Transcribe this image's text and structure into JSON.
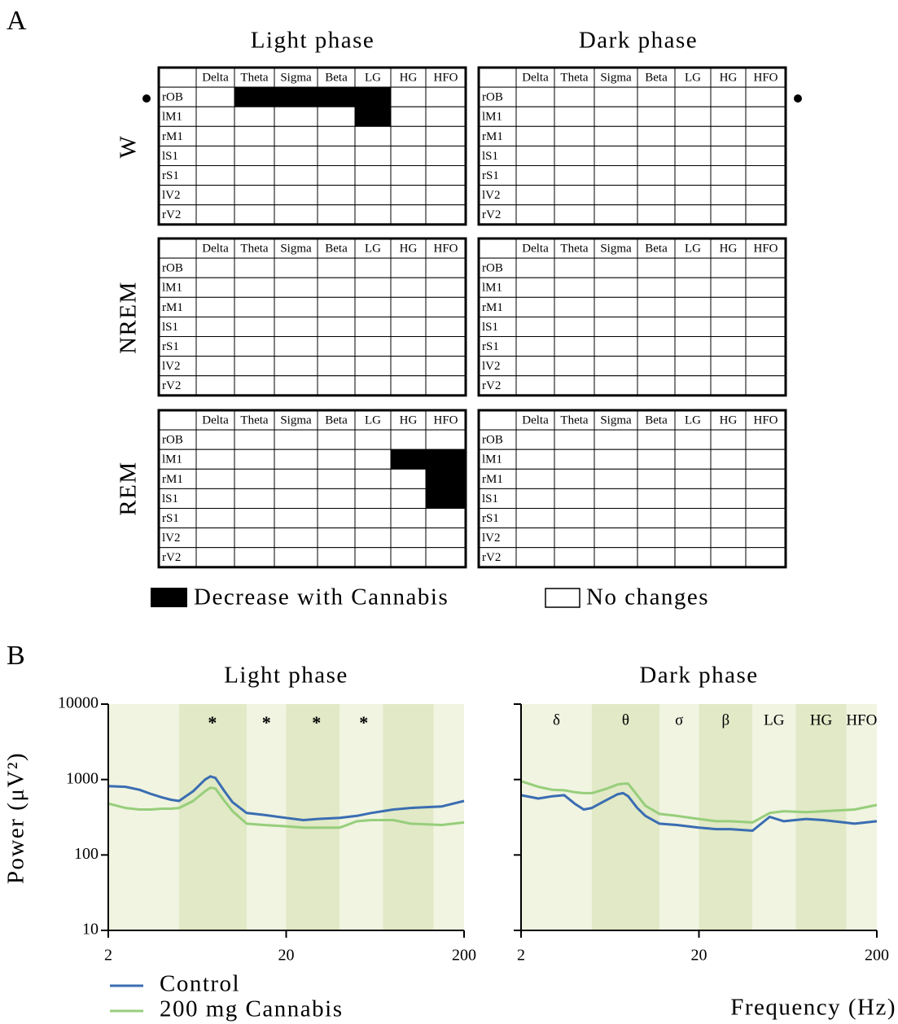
{
  "panel_a": {
    "label": "A",
    "phases": [
      "Light phase",
      "Dark phase"
    ],
    "states": [
      "W",
      "NREM",
      "REM"
    ],
    "bands": [
      "Delta",
      "Theta",
      "Sigma",
      "Beta",
      "LG",
      "HG",
      "HFO"
    ],
    "regions": [
      "rOB",
      "lM1",
      "rM1",
      "lS1",
      "rS1",
      "lV2",
      "rV2"
    ],
    "decrease": [
      [
        [
          [
            0,
            1,
            1,
            1,
            1,
            0,
            0
          ],
          [
            0,
            0,
            0,
            0,
            1,
            0,
            0
          ],
          [
            0,
            0,
            0,
            0,
            0,
            0,
            0
          ],
          [
            0,
            0,
            0,
            0,
            0,
            0,
            0
          ],
          [
            0,
            0,
            0,
            0,
            0,
            0,
            0
          ],
          [
            0,
            0,
            0,
            0,
            0,
            0,
            0
          ],
          [
            0,
            0,
            0,
            0,
            0,
            0,
            0
          ]
        ],
        [
          [
            0,
            0,
            0,
            0,
            0,
            0,
            0
          ],
          [
            0,
            0,
            0,
            0,
            0,
            0,
            0
          ],
          [
            0,
            0,
            0,
            0,
            0,
            0,
            0
          ],
          [
            0,
            0,
            0,
            0,
            0,
            0,
            0
          ],
          [
            0,
            0,
            0,
            0,
            0,
            0,
            0
          ],
          [
            0,
            0,
            0,
            0,
            0,
            0,
            0
          ],
          [
            0,
            0,
            0,
            0,
            0,
            0,
            0
          ]
        ]
      ],
      [
        [
          [
            0,
            0,
            0,
            0,
            0,
            0,
            0
          ],
          [
            0,
            0,
            0,
            0,
            0,
            0,
            0
          ],
          [
            0,
            0,
            0,
            0,
            0,
            0,
            0
          ],
          [
            0,
            0,
            0,
            0,
            0,
            0,
            0
          ],
          [
            0,
            0,
            0,
            0,
            0,
            0,
            0
          ],
          [
            0,
            0,
            0,
            0,
            0,
            0,
            0
          ],
          [
            0,
            0,
            0,
            0,
            0,
            0,
            0
          ]
        ],
        [
          [
            0,
            0,
            0,
            0,
            0,
            0,
            0
          ],
          [
            0,
            0,
            0,
            0,
            0,
            0,
            0
          ],
          [
            0,
            0,
            0,
            0,
            0,
            0,
            0
          ],
          [
            0,
            0,
            0,
            0,
            0,
            0,
            0
          ],
          [
            0,
            0,
            0,
            0,
            0,
            0,
            0
          ],
          [
            0,
            0,
            0,
            0,
            0,
            0,
            0
          ],
          [
            0,
            0,
            0,
            0,
            0,
            0,
            0
          ]
        ]
      ],
      [
        [
          [
            0,
            0,
            0,
            0,
            0,
            0,
            0
          ],
          [
            0,
            0,
            0,
            0,
            0,
            1,
            1
          ],
          [
            0,
            0,
            0,
            0,
            0,
            0,
            1
          ],
          [
            0,
            0,
            0,
            0,
            0,
            0,
            1
          ],
          [
            0,
            0,
            0,
            0,
            0,
            0,
            0
          ],
          [
            0,
            0,
            0,
            0,
            0,
            0,
            0
          ],
          [
            0,
            0,
            0,
            0,
            0,
            0,
            0
          ]
        ],
        [
          [
            0,
            0,
            0,
            0,
            0,
            0,
            0
          ],
          [
            0,
            0,
            0,
            0,
            0,
            0,
            0
          ],
          [
            0,
            0,
            0,
            0,
            0,
            0,
            0
          ],
          [
            0,
            0,
            0,
            0,
            0,
            0,
            0
          ],
          [
            0,
            0,
            0,
            0,
            0,
            0,
            0
          ],
          [
            0,
            0,
            0,
            0,
            0,
            0,
            0
          ],
          [
            0,
            0,
            0,
            0,
            0,
            0,
            0
          ]
        ]
      ]
    ],
    "legend": [
      "Decrease with Cannabis",
      "No changes"
    ]
  },
  "panel_b_label": "B",
  "chart_data": [
    {
      "type": "line",
      "title": "Light phase",
      "ylabel": "Power (μV²)",
      "x": [
        2,
        2.5,
        3,
        3.5,
        4,
        4.5,
        5,
        6,
        7,
        7.5,
        8,
        9,
        10,
        12,
        15,
        20,
        25,
        30,
        40,
        50,
        60,
        80,
        100,
        150,
        200
      ],
      "series": [
        {
          "name": "Control",
          "color": "#3a6db2",
          "values": [
            820,
            800,
            730,
            640,
            580,
            540,
            520,
            700,
            1000,
            1100,
            1050,
            700,
            500,
            360,
            340,
            310,
            290,
            300,
            310,
            330,
            360,
            400,
            420,
            440,
            520
          ]
        },
        {
          "name": "200 mg Cannabis",
          "color": "#97ce7b",
          "values": [
            480,
            420,
            400,
            400,
            410,
            410,
            420,
            520,
            700,
            780,
            760,
            520,
            380,
            260,
            250,
            240,
            230,
            230,
            230,
            280,
            290,
            290,
            260,
            250,
            270
          ]
        }
      ],
      "xlim": [
        2,
        200
      ],
      "ylim": [
        10,
        10000
      ],
      "xticks": [
        2,
        20,
        200
      ],
      "yticks": [
        10,
        100,
        1000,
        10000
      ],
      "xscale": "log",
      "yscale": "log",
      "yticklabels": true,
      "bands": {
        "edges": [
          2,
          5,
          12,
          20,
          40,
          70,
          135,
          200
        ],
        "colors": [
          "#f0f4e1",
          "#e1e9c6"
        ]
      },
      "annotations": [
        {
          "text": "*",
          "x": 7.7
        },
        {
          "text": "*",
          "x": 15.5
        },
        {
          "text": "*",
          "x": 29.6
        },
        {
          "text": "*",
          "x": 54.6
        }
      ]
    },
    {
      "type": "line",
      "title": "Dark phase",
      "xlabel": "Frequency (Hz)",
      "x": [
        2,
        2.5,
        3,
        3.5,
        4,
        4.5,
        5,
        6,
        7,
        7.5,
        8,
        9,
        10,
        12,
        15,
        20,
        25,
        30,
        40,
        50,
        60,
        80,
        100,
        150,
        200
      ],
      "series": [
        {
          "color": "#3a6db2",
          "values": [
            620,
            560,
            600,
            620,
            480,
            400,
            420,
            530,
            640,
            660,
            600,
            420,
            330,
            260,
            250,
            230,
            220,
            220,
            210,
            320,
            280,
            300,
            290,
            260,
            280
          ]
        },
        {
          "color": "#97ce7b",
          "values": [
            950,
            800,
            730,
            720,
            680,
            660,
            660,
            750,
            860,
            880,
            880,
            620,
            450,
            350,
            330,
            300,
            280,
            280,
            270,
            360,
            380,
            370,
            380,
            400,
            460
          ]
        }
      ],
      "xlim": [
        2,
        200
      ],
      "ylim": [
        10,
        10000
      ],
      "xticks": [
        2,
        20,
        200
      ],
      "yticks": [
        10,
        100,
        1000,
        10000
      ],
      "xscale": "log",
      "yscale": "log",
      "yticklabels": false,
      "bands": {
        "edges": [
          2,
          5,
          12,
          20,
          40,
          70,
          135,
          200
        ],
        "colors": [
          "#f0f4e1",
          "#e1e9c6"
        ],
        "labels": [
          "δ",
          "θ",
          "σ",
          "β",
          "LG",
          "HG",
          "HFO"
        ]
      }
    }
  ]
}
